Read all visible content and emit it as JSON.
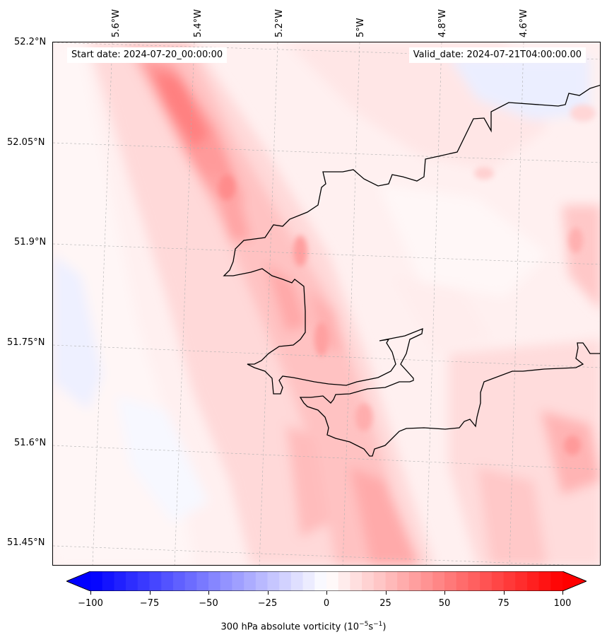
{
  "map": {
    "start_date": "Start date: 2024-07-20_00:00:00",
    "valid_date": "Valid_date: 2024-07-21T04:00:00.00",
    "lat_labels": [
      "52.2°N",
      "52.05°N",
      "51.9°N",
      "51.75°N",
      "51.6°N",
      "51.45°N"
    ],
    "lon_labels": [
      "5.6°W",
      "5.4°W",
      "5.2°W",
      "5°W",
      "4.8°W",
      "4.6°W"
    ]
  },
  "colorbar": {
    "label_prefix": "300 hPa absolute vorticity (10",
    "label_exp1": "−5",
    "label_mid": "s",
    "label_exp2": "−1",
    "label_suffix": ")",
    "ticks": [
      "−100",
      "−75",
      "−50",
      "−25",
      "0",
      "25",
      "50",
      "75",
      "100"
    ],
    "min": -100,
    "max": 100,
    "colormap": "bwr",
    "colors": {
      "negative": "#0000ff",
      "zero": "#ffffff",
      "positive": "#ff0000"
    }
  }
}
